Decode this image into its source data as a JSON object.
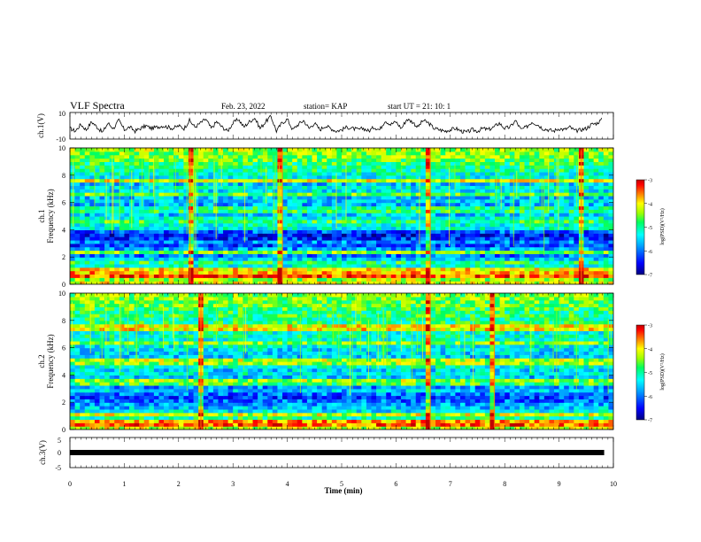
{
  "header": {
    "title": "VLF Spectra",
    "date": "Feb. 23, 2022",
    "station": "station= KAP",
    "start": "start  UT  =   21: 10: 1"
  },
  "colors": {
    "ink": "#000000",
    "colormap": [
      "#000080",
      "#0000ff",
      "#0080ff",
      "#00ffff",
      "#00ff80",
      "#80ff00",
      "#ffff00",
      "#ff8000",
      "#ff0000",
      "#800000"
    ]
  },
  "chart_data": [
    {
      "type": "line",
      "ylabel": "ch.1(V)",
      "ylim": [
        -10,
        10
      ],
      "yticks": [
        "10",
        "-10"
      ],
      "xlim": [
        0,
        10
      ],
      "series": [
        {
          "x": [
            0.0,
            0.1,
            0.2,
            0.3,
            0.4,
            0.5,
            0.6,
            0.7,
            0.8,
            0.9,
            1.0,
            1.1,
            1.2,
            1.3,
            1.4,
            1.5,
            1.6,
            1.7,
            1.8,
            1.9,
            2.0,
            2.1,
            2.2,
            2.3,
            2.4,
            2.5,
            2.6,
            2.7,
            2.8,
            2.9,
            3.0,
            3.1,
            3.2,
            3.3,
            3.4,
            3.5,
            3.6,
            3.7,
            3.8,
            3.9,
            4.0,
            4.1,
            4.2,
            4.3,
            4.4,
            4.5,
            4.6,
            4.7,
            4.8,
            4.9,
            5.0,
            5.1,
            5.2,
            5.3,
            5.4,
            5.5,
            5.6,
            5.7,
            5.8,
            5.9,
            6.0,
            6.1,
            6.2,
            6.3,
            6.4,
            6.5,
            6.6,
            6.7,
            6.8,
            6.9,
            7.0,
            7.1,
            7.2,
            7.3,
            7.4,
            7.5,
            7.6,
            7.7,
            7.8,
            7.9,
            8.0,
            8.1,
            8.2,
            8.3,
            8.4,
            8.5,
            8.6,
            8.7,
            8.8,
            8.9,
            9.0,
            9.1,
            9.2,
            9.3,
            9.4,
            9.5,
            9.6,
            9.7,
            9.8
          ],
          "values": [
            -2,
            -4,
            1,
            -3,
            3,
            -1,
            -5,
            2,
            -2,
            4,
            -3,
            -1,
            -4,
            -2,
            0,
            -2,
            -1,
            0,
            -1,
            -2,
            0,
            -2,
            4,
            -1,
            2,
            5,
            -2,
            3,
            -1,
            -4,
            2,
            5,
            -1,
            3,
            6,
            -2,
            3,
            7,
            -4,
            2,
            5,
            -3,
            1,
            4,
            -2,
            2,
            -3,
            0,
            -2,
            -4,
            -3,
            -1,
            -2,
            -3,
            -2,
            -4,
            -1,
            -3,
            4,
            1,
            3,
            -2,
            5,
            3,
            -1,
            4,
            2,
            -2,
            -3,
            -4,
            -3,
            -2,
            -4,
            -5,
            -3,
            -4,
            -2,
            -3,
            -1,
            2,
            -2,
            -1,
            4,
            -3,
            -1,
            3,
            1,
            -2,
            -3,
            -4,
            -2,
            -3,
            -1,
            -4,
            -3,
            -2,
            1,
            2,
            5
          ]
        }
      ]
    },
    {
      "type": "heatmap",
      "ylabel": "ch.1\nFrequency (kHz)",
      "ylim": [
        0,
        10
      ],
      "yticks": [
        "10",
        "8",
        "6",
        "4",
        "2",
        "0"
      ],
      "xlim": [
        0,
        10
      ],
      "colorbar": {
        "min": -7,
        "max": -3,
        "ticks": [
          "-3",
          "-4",
          "-5",
          "-6",
          "-7"
        ],
        "label": "log(PSD)(V²/Hz)"
      },
      "freq_profile": [
        -4.1,
        -4.3,
        -4.4,
        -4.8,
        -5.0,
        -5.2,
        -4.9,
        -5.5,
        -6.0,
        -5.5,
        -5.8,
        -6.2,
        -5.9,
        -6.3,
        -6.5,
        -6.1,
        -5.3,
        -6.2,
        -5.8,
        -5.2,
        -5.6,
        -5.9,
        -6.0,
        -5.7,
        -5.5,
        -5.6,
        -5.6,
        -5.4,
        -5.3,
        -5.6,
        -5.1,
        -5.3,
        -5.2,
        -5.0,
        -4.9,
        -4.8,
        -4.6,
        -4.5,
        -4.5,
        -4.4
      ],
      "bright_lines_khz": [
        0.6,
        1.0,
        2.4,
        4.5,
        5.5,
        6.7,
        7.6
      ],
      "bright_times_min": [
        2.2,
        3.9,
        6.62,
        9.4
      ]
    },
    {
      "type": "heatmap",
      "ylabel": "ch.2\nFrequency (kHz)",
      "ylim": [
        0,
        10
      ],
      "yticks": [
        "10",
        "8",
        "6",
        "4",
        "2",
        "0"
      ],
      "xlim": [
        0,
        10
      ],
      "colorbar": {
        "min": -7,
        "max": -3,
        "ticks": [
          "-3",
          "-4",
          "-5",
          "-6",
          "-7"
        ],
        "label": "log(PSD)(V²/Hz)"
      },
      "freq_profile": [
        -4.2,
        -4.5,
        -4.7,
        -5.0,
        -5.2,
        -5.4,
        -5.6,
        -5.8,
        -6.0,
        -6.2,
        -6.0,
        -5.6,
        -5.9,
        -5.7,
        -5.4,
        -5.6,
        -5.3,
        -5.5,
        -5.2,
        -5.4,
        -5.3,
        -5.6,
        -5.5,
        -5.4,
        -5.3,
        -5.5,
        -5.2,
        -5.1,
        -5.2,
        -5.0,
        -5.1,
        -4.9,
        -5.0,
        -4.8,
        -4.9,
        -4.7,
        -4.6,
        -4.6,
        -4.5,
        -4.5
      ],
      "bright_lines_khz": [
        0.5,
        1.2,
        3.5,
        5.0,
        6.3,
        7.5
      ],
      "bright_times_min": [
        2.4,
        6.62,
        7.8
      ]
    },
    {
      "type": "line",
      "ylabel": "ch.3(V)",
      "ylim": [
        -5,
        5
      ],
      "yticks": [
        "5",
        "0",
        "-5"
      ],
      "xlim": [
        0,
        10
      ],
      "xlabel": "Time  (min)",
      "xticks": [
        "0",
        "1",
        "2",
        "3",
        "4",
        "5",
        "6",
        "7",
        "8",
        "9",
        "10"
      ],
      "series": [
        {
          "x": [
            0,
            9.83
          ],
          "values": [
            0,
            0
          ]
        }
      ]
    }
  ]
}
